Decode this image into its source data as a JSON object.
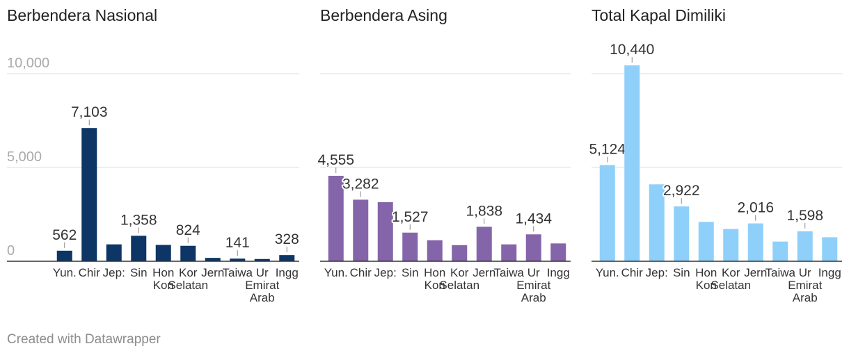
{
  "chart_data": [
    {
      "type": "bar",
      "title": "Berbendera Nasional",
      "color": "#0d3566",
      "ylim": [
        0,
        10000
      ],
      "yticks": [
        {
          "value": 0,
          "label": "0"
        },
        {
          "value": 5000,
          "label": "5,000"
        },
        {
          "value": 10000,
          "label": "10,000"
        }
      ],
      "categories": [
        "Yunani",
        "China",
        "Jepang",
        "Singapura",
        "Hong Kong",
        "Korea Selatan",
        "Jerman",
        "Taiwan",
        "Uni Emirat Arab",
        "Inggris"
      ],
      "category_labels": [
        [
          "Yun."
        ],
        [
          "Chir"
        ],
        [
          "Jep:"
        ],
        [
          "Sin"
        ],
        [
          "Hon",
          "Kon"
        ],
        [
          "Kor",
          "Selatan"
        ],
        [
          "Jern"
        ],
        [
          "Taiwa"
        ],
        [
          "Ur",
          "Emirat",
          "Arab"
        ],
        [
          "Ingg"
        ]
      ],
      "values": [
        562,
        7103,
        900,
        1358,
        870,
        824,
        180,
        141,
        120,
        328
      ],
      "value_labels": [
        "562",
        "7,103",
        "",
        "1,358",
        "",
        "824",
        "",
        "141",
        "",
        "328"
      ]
    },
    {
      "type": "bar",
      "title": "Berbendera Asing",
      "color": "#8565a9",
      "ylim": [
        0,
        10000
      ],
      "yticks": [
        {
          "value": 0,
          "label": ""
        },
        {
          "value": 5000,
          "label": ""
        },
        {
          "value": 10000,
          "label": ""
        }
      ],
      "categories": [
        "Yunani",
        "China",
        "Jepang",
        "Singapura",
        "Hong Kong",
        "Korea Selatan",
        "Jerman",
        "Taiwan",
        "Uni Emirat Arab",
        "Inggris"
      ],
      "category_labels": [
        [
          "Yun."
        ],
        [
          "Chir"
        ],
        [
          "Jep:"
        ],
        [
          "Sin"
        ],
        [
          "Hon",
          "Kon"
        ],
        [
          "Kor",
          "Selatan"
        ],
        [
          "Jern"
        ],
        [
          "Taiwa"
        ],
        [
          "Ur",
          "Emirat",
          "Arab"
        ],
        [
          "Ingg"
        ]
      ],
      "values": [
        4555,
        3282,
        3150,
        1527,
        1120,
        860,
        1838,
        900,
        1434,
        950
      ],
      "value_labels": [
        "4,555",
        "3,282",
        "",
        "1,527",
        "",
        "",
        "1,838",
        "",
        "1,434",
        ""
      ]
    },
    {
      "type": "bar",
      "title": "Total Kapal Dimiliki",
      "color": "#8fd0fa",
      "ylim": [
        0,
        10000
      ],
      "yticks": [
        {
          "value": 0,
          "label": ""
        },
        {
          "value": 5000,
          "label": ""
        },
        {
          "value": 10000,
          "label": ""
        }
      ],
      "categories": [
        "Yunani",
        "China",
        "Jepang",
        "Singapura",
        "Hong Kong",
        "Korea Selatan",
        "Jerman",
        "Taiwan",
        "Uni Emirat Arab",
        "Inggris"
      ],
      "category_labels": [
        [
          "Yun."
        ],
        [
          "Chir"
        ],
        [
          "Jep:"
        ],
        [
          "Sin"
        ],
        [
          "Hon",
          "Kon"
        ],
        [
          "Kor",
          "Selatan"
        ],
        [
          "Jern"
        ],
        [
          "Taiwa"
        ],
        [
          "Ur",
          "Emirat",
          "Arab"
        ],
        [
          "Ingg"
        ]
      ],
      "values": [
        5124,
        10440,
        4100,
        2922,
        2100,
        1720,
        2016,
        1050,
        1598,
        1280
      ],
      "value_labels": [
        "5,124",
        "10,440",
        "",
        "2,922",
        "",
        "",
        "2,016",
        "",
        "1,598",
        ""
      ]
    }
  ],
  "footer": {
    "credit": "Created with Datawrapper"
  }
}
